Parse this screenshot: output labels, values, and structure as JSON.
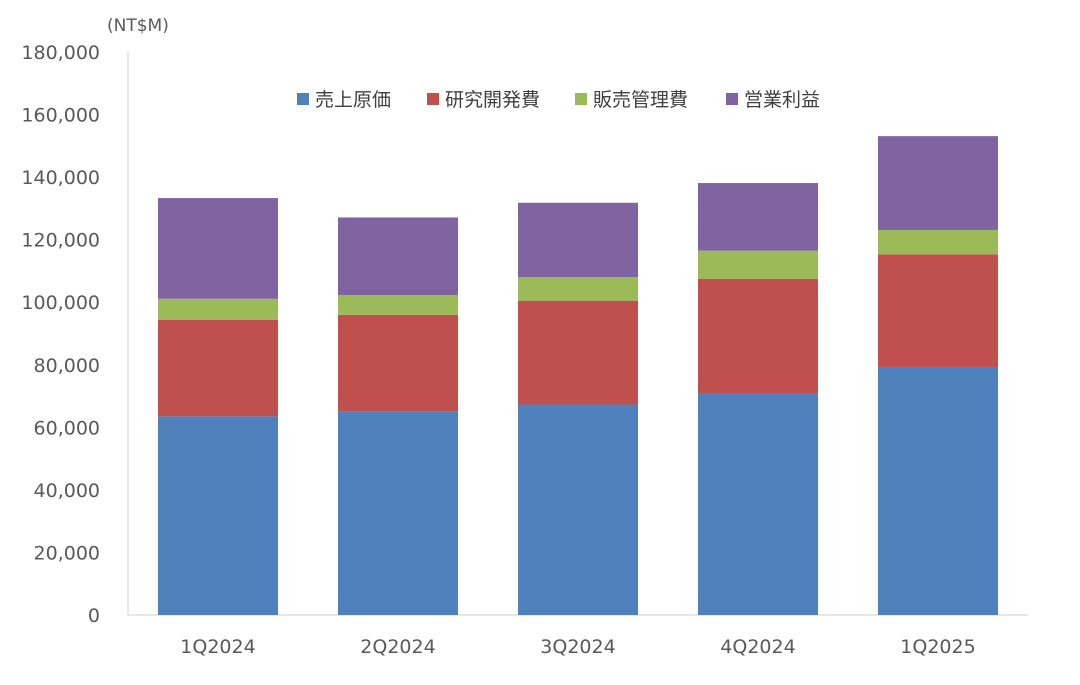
{
  "chart_data": {
    "type": "bar",
    "stacked": true,
    "unit_label": "(NT$M)",
    "title": "",
    "xlabel": "",
    "ylabel": "",
    "categories": [
      "1Q2024",
      "2Q2024",
      "3Q2024",
      "4Q2024",
      "1Q2025"
    ],
    "ylim": [
      0,
      180000
    ],
    "yticks": [
      0,
      20000,
      40000,
      60000,
      80000,
      100000,
      120000,
      140000,
      160000,
      180000
    ],
    "ytick_labels": [
      "0",
      "20,000",
      "40,000",
      "60,000",
      "80,000",
      "100,000",
      "120,000",
      "140,000",
      "160,000",
      "180,000"
    ],
    "grid": false,
    "legend_position": "top-center",
    "series": [
      {
        "name": "売上原価",
        "color": "#4F81BD",
        "values": [
          63500,
          65000,
          67300,
          70800,
          79300
        ]
      },
      {
        "name": "研究開発費",
        "color": "#C0504D",
        "values": [
          30900,
          31000,
          33200,
          36700,
          36000
        ]
      },
      {
        "name": "販売管理費",
        "color": "#9BBB59",
        "values": [
          6700,
          6300,
          7500,
          9000,
          7800
        ]
      },
      {
        "name": "営業利益",
        "color": "#8064A2",
        "values": [
          32200,
          24800,
          23800,
          21600,
          30000
        ]
      }
    ]
  }
}
